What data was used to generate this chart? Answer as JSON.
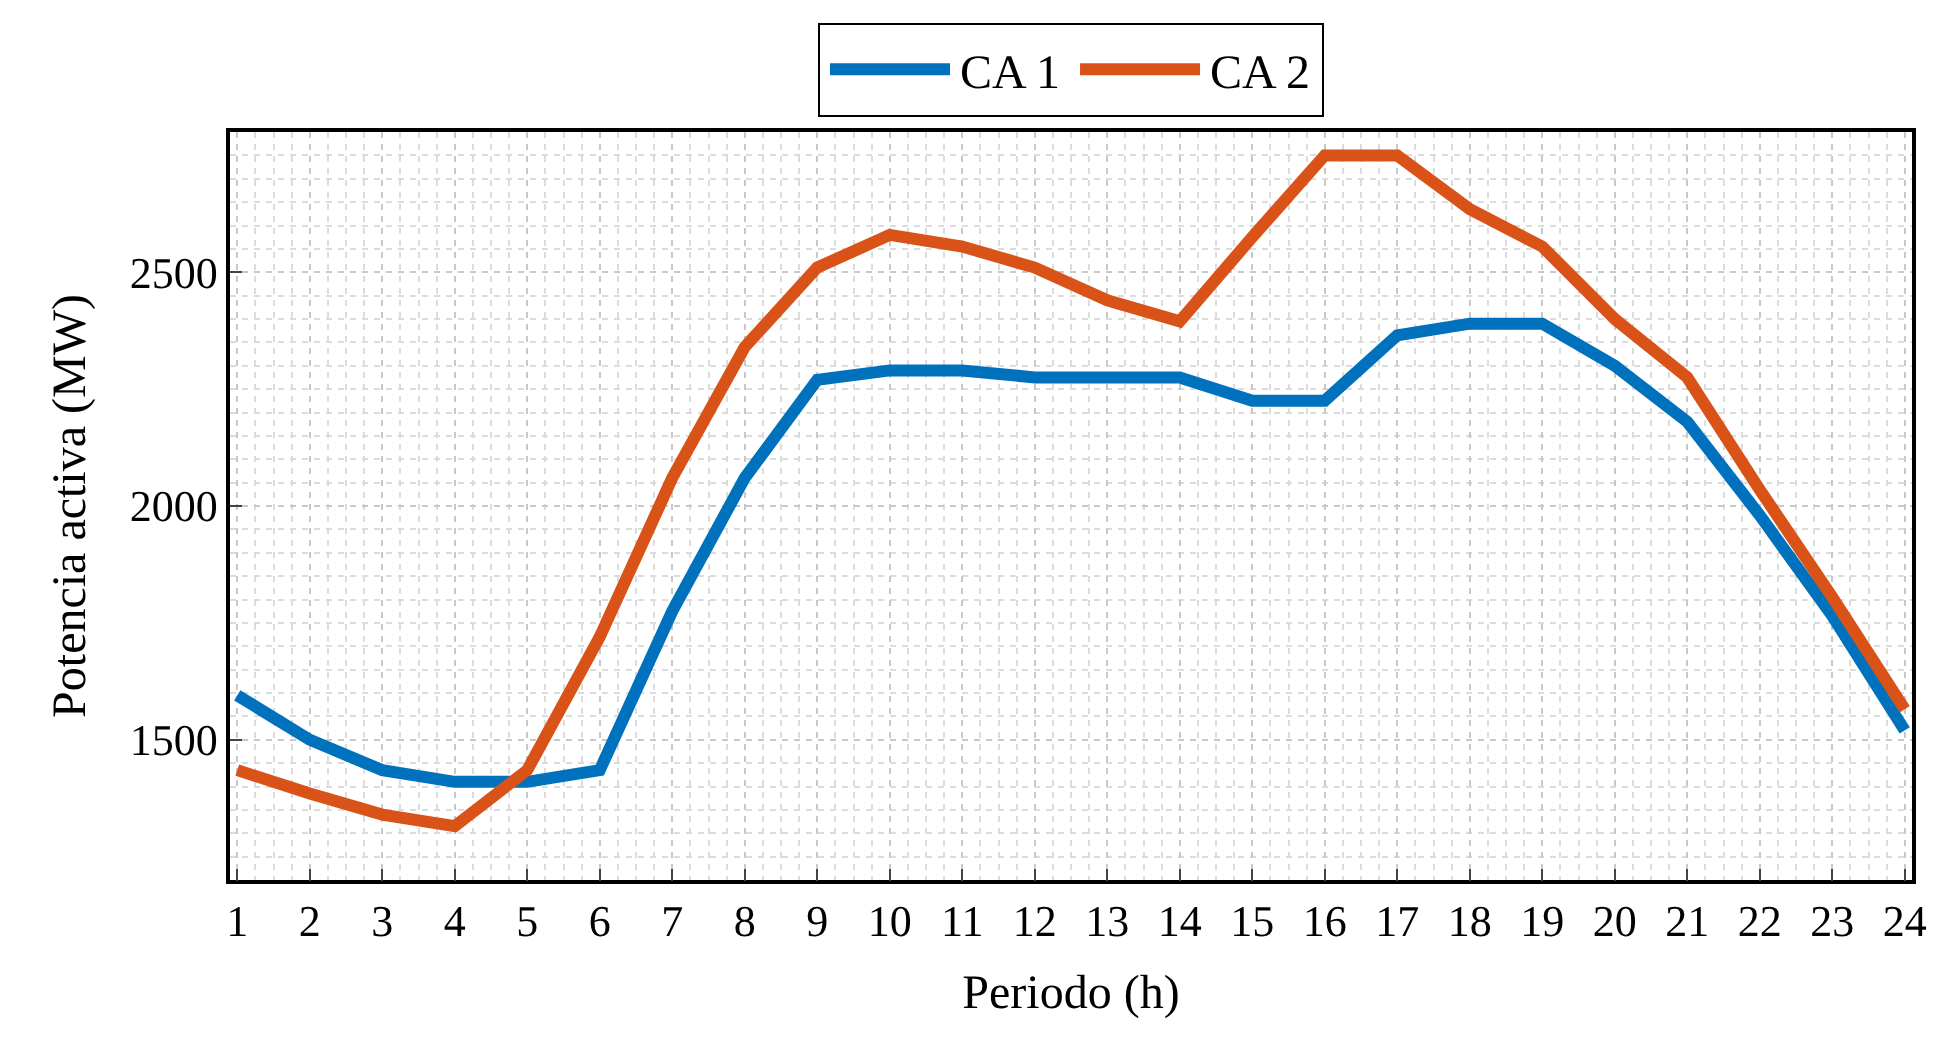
{
  "chart_data": {
    "type": "line",
    "xlabel": "Periodo (h)",
    "ylabel": "Potencia activa (MW)",
    "x": [
      1,
      2,
      3,
      4,
      5,
      6,
      7,
      8,
      9,
      10,
      11,
      12,
      13,
      14,
      15,
      16,
      17,
      18,
      19,
      20,
      21,
      22,
      23,
      24
    ],
    "series": [
      {
        "name": "CA 1",
        "color": "#0072bd",
        "values": [
          1595,
          1500,
          1435,
          1410,
          1410,
          1435,
          1775,
          2060,
          2270,
          2290,
          2290,
          2275,
          2275,
          2275,
          2225,
          2225,
          2365,
          2390,
          2390,
          2300,
          2180,
          1980,
          1765,
          1520
        ]
      },
      {
        "name": "CA 2",
        "color": "#d95319",
        "values": [
          1435,
          1385,
          1340,
          1315,
          1435,
          1720,
          2060,
          2340,
          2510,
          2580,
          2555,
          2510,
          2440,
          2395,
          2575,
          2750,
          2750,
          2635,
          2555,
          2400,
          2275,
          2035,
          1805,
          1565
        ]
      }
    ],
    "xlim": [
      0.9,
      24.1
    ],
    "xticks": [
      1,
      2,
      3,
      4,
      5,
      6,
      7,
      8,
      9,
      10,
      11,
      12,
      13,
      14,
      15,
      16,
      17,
      18,
      19,
      20,
      21,
      22,
      23,
      24
    ],
    "ylim": [
      1200,
      2800
    ],
    "yticks": [
      1500,
      2000,
      2500
    ],
    "grid": true,
    "legend": "top",
    "marker": "none",
    "line_style": "solid"
  }
}
